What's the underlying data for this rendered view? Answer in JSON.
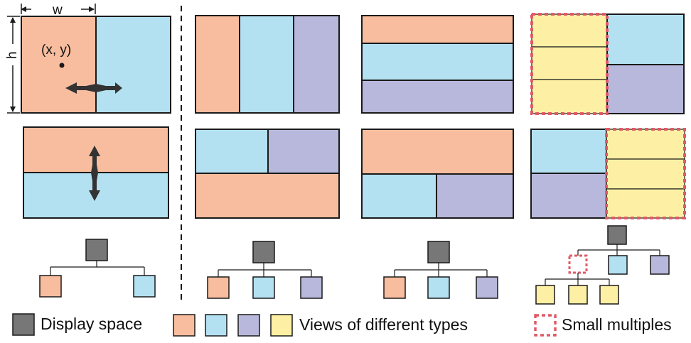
{
  "colors": {
    "display": "#777777",
    "orange": "#f8bd9e",
    "blue": "#b3e1f1",
    "purple": "#b8b8dc",
    "yellow": "#fdf0a4",
    "dash": "#e05a66",
    "stroke": "#1a1a1a"
  },
  "annotations": {
    "width_label": "w",
    "height_label": "h",
    "position_label": "(x, y)"
  },
  "legend": {
    "display_space": "Display space",
    "views": "Views of different types",
    "small_multiples": "Small multiples"
  }
}
